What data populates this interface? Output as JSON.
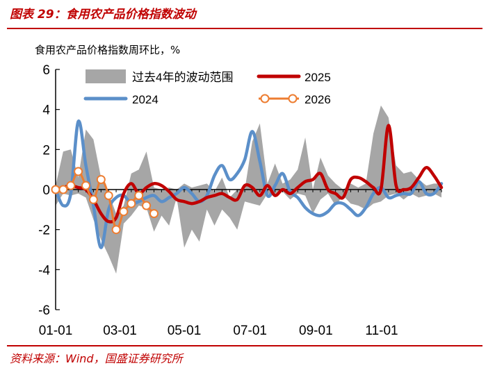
{
  "header": {
    "title": "图表 29：食用农产品价格指数波动",
    "source": "资料来源：Wind，国盛证券研究所"
  },
  "chart_data": {
    "type": "line",
    "ylabel": "食用农产品价格指数周环比，%",
    "ylim": [
      -6,
      6
    ],
    "yticks": [
      6,
      4,
      2,
      0,
      -2,
      -4,
      -6
    ],
    "xlim": [
      1,
      52
    ],
    "xticks": [
      {
        "label": "01-01",
        "week": 1
      },
      {
        "label": "03-01",
        "week": 9.5
      },
      {
        "label": "05-01",
        "week": 18
      },
      {
        "label": "07-01",
        "week": 26.7
      },
      {
        "label": "09-01",
        "week": 35.4
      },
      {
        "label": "11-01",
        "week": 44.1
      }
    ],
    "legend_position": "top",
    "band": {
      "name": "过去4年的波动范围",
      "color": "#a6a6a6",
      "x": [
        1,
        2,
        3,
        4,
        5,
        6,
        7,
        8,
        9,
        10,
        11,
        12,
        13,
        14,
        15,
        16,
        17,
        18,
        19,
        20,
        21,
        22,
        23,
        24,
        25,
        26,
        27,
        28,
        29,
        30,
        31,
        32,
        33,
        34,
        35,
        36,
        37,
        38,
        39,
        40,
        41,
        42,
        43,
        44,
        45,
        46,
        47,
        48,
        49,
        50,
        51,
        52
      ],
      "upper": [
        0.2,
        1.9,
        2.0,
        0.6,
        3.0,
        2.5,
        0.6,
        -0.2,
        -1.2,
        -0.8,
        0.8,
        1.0,
        1.9,
        0.1,
        0.0,
        0.1,
        0.0,
        0.3,
        0.1,
        0.2,
        0.3,
        -0.1,
        0.6,
        -0.4,
        0.0,
        0.0,
        2.4,
        3.3,
        0.3,
        1.3,
        0.3,
        0.5,
        1.0,
        2.6,
        0.0,
        1.6,
        0.7,
        0.3,
        0.0,
        0.3,
        0.1,
        0.3,
        2.8,
        4.2,
        3.6,
        1.2,
        0.8,
        0.9,
        0.5,
        0.2,
        0.3,
        0.3
      ],
      "lower": [
        -0.8,
        -0.2,
        -0.3,
        -0.2,
        -0.4,
        -1.5,
        -2.5,
        -3.3,
        -4.2,
        -1.7,
        -1.3,
        -0.8,
        -0.9,
        -2.1,
        -1.3,
        -1.8,
        -0.4,
        -2.9,
        -2.0,
        -2.6,
        -1.0,
        -1.8,
        -1.0,
        -1.4,
        -2.0,
        -0.6,
        -0.7,
        -0.8,
        -0.2,
        -0.3,
        -0.1,
        -0.5,
        -0.2,
        -0.3,
        -1.2,
        -0.5,
        -0.2,
        -0.8,
        -0.3,
        -0.7,
        -0.8,
        -1.0,
        -0.7,
        -0.6,
        -0.3,
        -0.2,
        -0.5,
        -0.2,
        -0.4,
        -0.3,
        -0.2,
        -0.4
      ]
    },
    "series": [
      {
        "name": "2025",
        "color": "#c00000",
        "x": [
          1,
          2,
          3,
          4,
          5,
          6,
          7,
          8,
          9,
          10,
          11,
          12,
          13,
          14,
          15,
          16,
          17,
          18,
          19,
          20,
          21,
          22,
          23,
          24,
          25,
          26,
          27,
          28,
          29,
          30,
          31,
          32,
          33,
          34,
          35,
          36,
          37,
          38,
          39,
          40,
          41,
          42,
          43,
          44,
          45,
          46,
          47,
          48,
          49,
          50,
          51,
          52
        ],
        "values": [
          0.0,
          0.1,
          0.2,
          0.1,
          0.0,
          -0.5,
          -1.2,
          -1.6,
          -1.4,
          -0.2,
          0.3,
          -0.2,
          0.1,
          0.3,
          0.2,
          -0.1,
          -0.5,
          -0.6,
          -0.7,
          -0.6,
          -0.4,
          -0.3,
          -0.2,
          -0.4,
          -0.5,
          0.2,
          0.1,
          -0.3,
          0.2,
          -0.3,
          0.0,
          -0.2,
          0.1,
          0.4,
          0.5,
          0.8,
          0.0,
          -0.2,
          -0.4,
          0.5,
          0.6,
          0.4,
          0.1,
          0.0,
          3.2,
          0.2,
          0.0,
          0.1,
          0.6,
          1.1,
          0.7,
          0.1
        ]
      },
      {
        "name": "2024",
        "color": "#5b8fc9",
        "x": [
          1,
          2,
          3,
          4,
          5,
          6,
          7,
          8,
          9,
          10,
          11,
          12,
          13,
          14,
          15,
          16,
          17,
          18,
          19,
          20,
          21,
          22,
          23,
          24,
          25,
          26,
          27,
          28,
          29,
          30,
          31,
          32,
          33,
          34,
          35,
          36,
          37,
          38,
          39,
          40,
          41,
          42,
          43,
          44,
          45,
          46,
          47,
          48,
          49,
          50,
          51,
          52
        ],
        "values": [
          0.0,
          -0.8,
          -0.2,
          3.4,
          1.2,
          -0.8,
          -2.9,
          -1.0,
          -0.4,
          -0.3,
          -0.7,
          -0.6,
          -0.4,
          -0.3,
          -0.6,
          -0.4,
          -0.2,
          0.1,
          -0.2,
          -0.6,
          -0.3,
          0.7,
          1.2,
          0.5,
          0.8,
          1.5,
          2.9,
          1.4,
          -0.3,
          0.2,
          0.8,
          -0.1,
          -0.4,
          -0.9,
          -1.2,
          -1.3,
          -1.1,
          -0.7,
          -0.7,
          -1.0,
          -1.3,
          -0.9,
          -0.2,
          0.1,
          -0.4,
          -0.3,
          -0.2,
          -0.2,
          0.4,
          -0.2,
          -0.2,
          0.3
        ]
      },
      {
        "name": "2026",
        "color": "#ed7d31",
        "marker": "circle",
        "x": [
          1,
          2,
          3,
          4,
          5,
          6,
          7,
          8,
          9,
          10,
          11,
          12,
          13,
          14
        ],
        "values": [
          0.0,
          0.0,
          0.2,
          0.9,
          0.2,
          -0.5,
          0.5,
          -0.3,
          -2.0,
          -1.1,
          -0.7,
          -0.3,
          -0.8,
          -1.2
        ]
      }
    ]
  }
}
